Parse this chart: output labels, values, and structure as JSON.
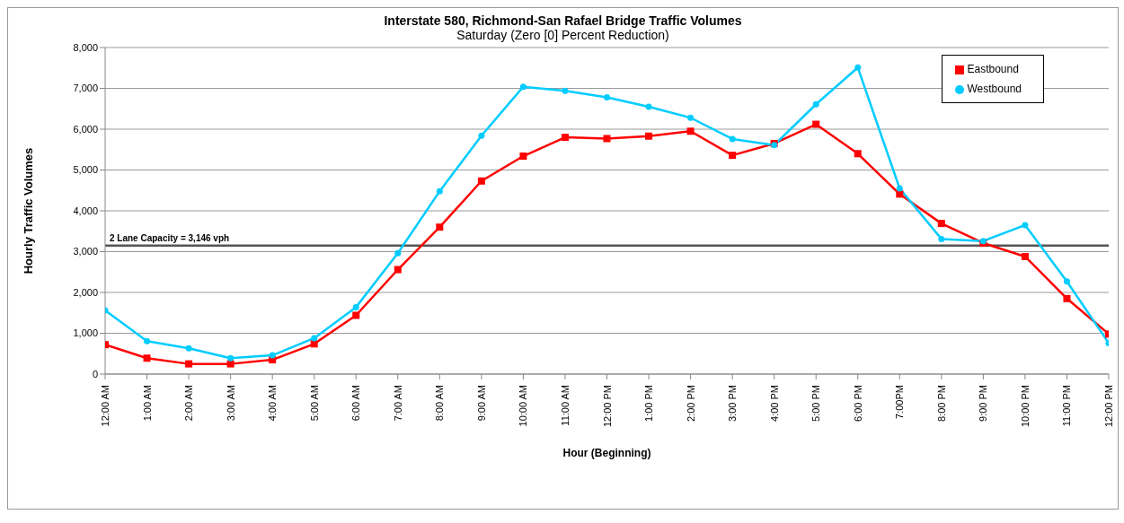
{
  "chart_data": {
    "type": "line",
    "title": "Interstate 580, Richmond-San Rafael Bridge Traffic Volumes",
    "subtitle": "Saturday (Zero [0] Percent Reduction)",
    "xlabel": "Hour (Beginning)",
    "ylabel": "Hourly Traffic Volumes",
    "categories": [
      "12:00 AM",
      "1:00 AM",
      "2:00 AM",
      "3:00 AM",
      "4:00 AM",
      "5:00 AM",
      "6:00 AM",
      "7:00 AM",
      "8:00 AM",
      "9:00 AM",
      "10:00 AM",
      "11:00 AM",
      "12:00 PM",
      "1:00 PM",
      "2:00 PM",
      "3:00 PM",
      "4:00 PM",
      "5:00 PM",
      "6:00 PM",
      "7:00PM",
      "8:00 PM",
      "9:00 PM",
      "10:00 PM",
      "11:00 PM",
      "12:00 PM"
    ],
    "series": [
      {
        "name": "Eastbound",
        "color": "#ff0000",
        "marker": "square",
        "values": [
          720,
          390,
          250,
          250,
          350,
          740,
          1440,
          2560,
          3600,
          4730,
          5340,
          5800,
          5770,
          5830,
          5950,
          5360,
          5650,
          6120,
          5400,
          4410,
          3690,
          3210,
          2880,
          1850,
          980
        ]
      },
      {
        "name": "Westbound",
        "color": "#00ccff",
        "marker": "circle",
        "values": [
          1560,
          810,
          630,
          390,
          460,
          880,
          1640,
          2960,
          4480,
          5840,
          7040,
          6940,
          6780,
          6550,
          6280,
          5760,
          5610,
          6610,
          7510,
          4550,
          3310,
          3260,
          3650,
          2270,
          760
        ]
      }
    ],
    "ylim": [
      0,
      8000
    ],
    "yticks": [
      0,
      {
        "value": 1000,
        "label": "1,000"
      },
      {
        "value": 2000,
        "label": "2,000"
      },
      {
        "value": 3000,
        "label": "3,000"
      },
      {
        "value": 4000,
        "label": "4,000"
      },
      {
        "value": 5000,
        "label": "5,000"
      },
      {
        "value": 6000,
        "label": "6,000"
      },
      {
        "value": 7000,
        "label": "7,000"
      },
      {
        "value": 8000,
        "label": "8,000"
      }
    ],
    "grid": "y",
    "legend": "top right",
    "line_style": "solid",
    "ref_lines": [
      {
        "axis": "y",
        "value": 3146,
        "label": "2 Lane Capacity = 3,146 vph",
        "color": "#555555"
      }
    ]
  }
}
